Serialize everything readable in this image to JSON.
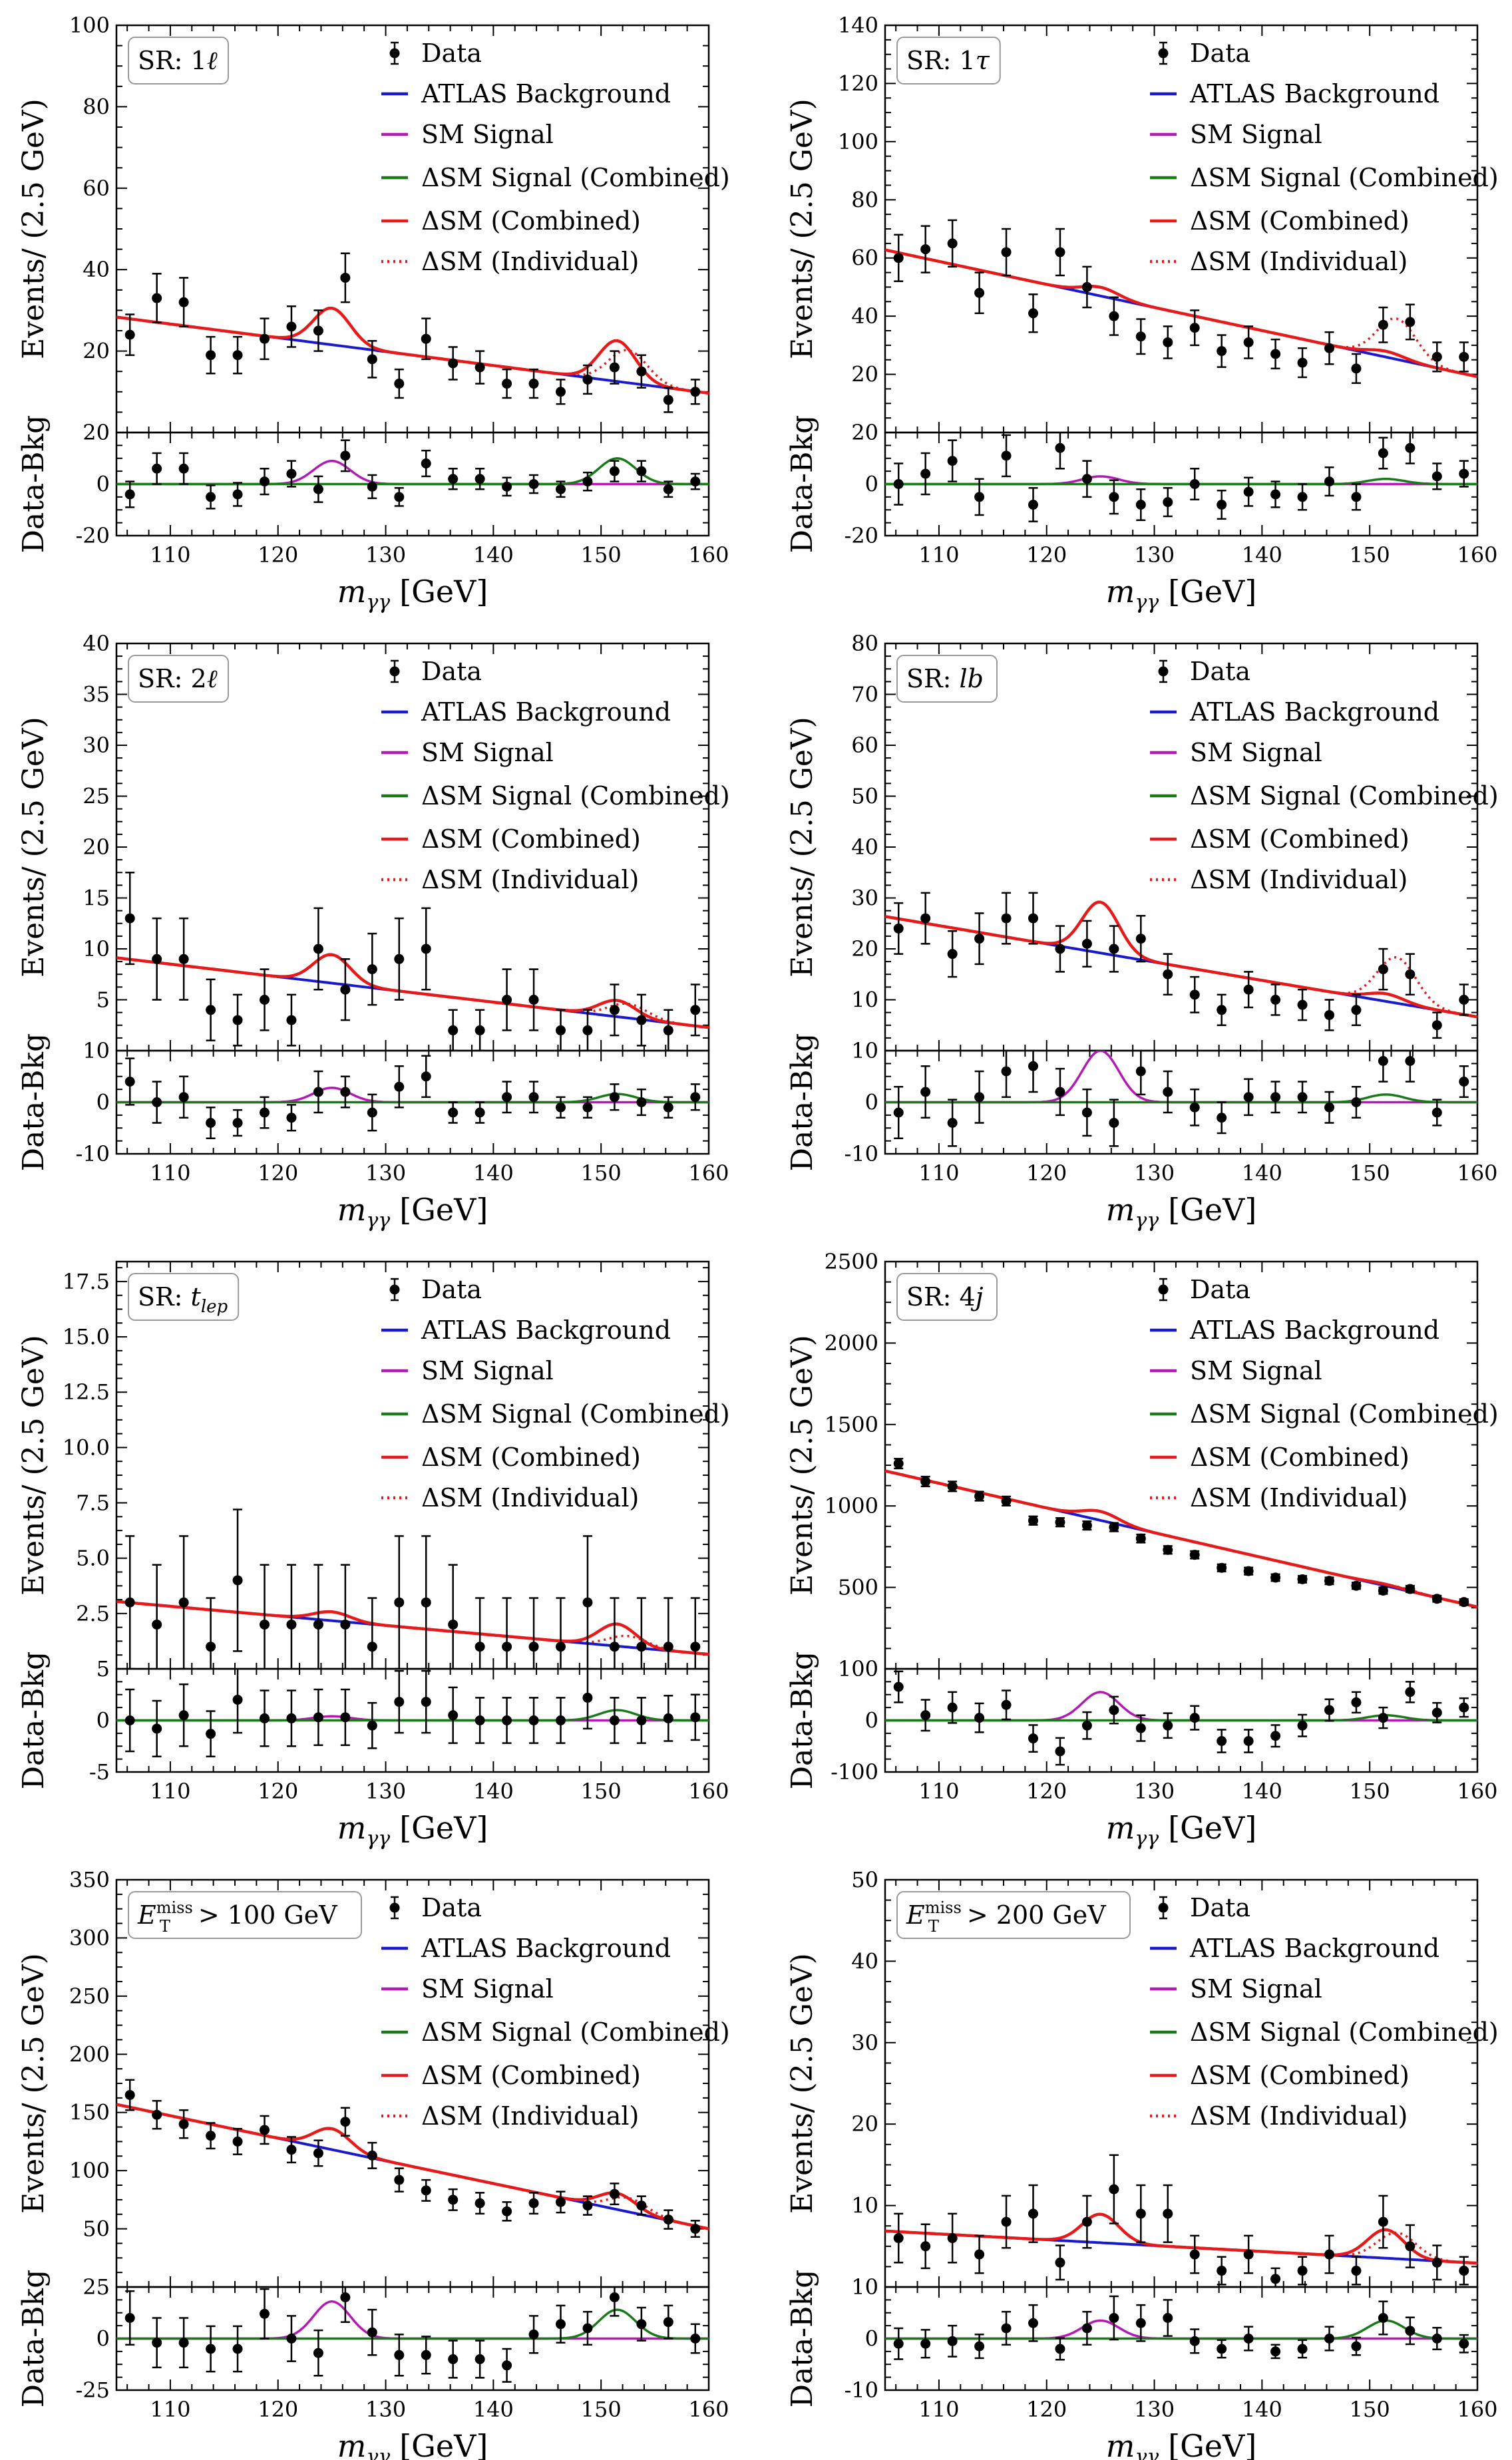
{
  "figure": {
    "xlabel_var": "m",
    "xlabel_sub": "γγ",
    "xlabel_unit": "[GeV]",
    "ylabel_top": "Events/ (2.5 GeV)",
    "ylabel_bottom": "Data-Bkg",
    "legend": [
      {
        "key": "data",
        "label": "Data",
        "color": "#000000",
        "style": "errorbar"
      },
      {
        "key": "bkg",
        "label": "ATLAS Background",
        "color": "#1a1acc",
        "style": "solid"
      },
      {
        "key": "sm",
        "label": "SM Signal",
        "color": "#b31ab3",
        "style": "solid"
      },
      {
        "key": "dsm_sig",
        "label": "ΔSM Signal (Combined)",
        "color": "#1a7a1a",
        "style": "solid"
      },
      {
        "key": "dsm_comb",
        "label": "ΔSM (Combined)",
        "color": "#e61a1a",
        "style": "solid"
      },
      {
        "key": "dsm_ind",
        "label": "ΔSM (Individual)",
        "color": "#e61a1a",
        "style": "dotted"
      }
    ],
    "x_ticks": [
      110,
      120,
      130,
      140,
      150,
      160
    ],
    "x_bins": [
      106.25,
      108.75,
      111.25,
      113.75,
      116.25,
      118.75,
      121.25,
      123.75,
      126.25,
      128.75,
      131.25,
      133.75,
      136.25,
      138.75,
      141.25,
      143.75,
      146.25,
      148.75,
      151.25,
      153.75,
      156.25,
      158.75
    ]
  },
  "chart_data": [
    {
      "type": "scatter",
      "title": "SR: 1ℓ",
      "xlim": [
        105,
        160
      ],
      "ylim": [
        0,
        100
      ],
      "y_ticks": [
        20,
        40,
        60,
        80,
        100
      ],
      "res_ylim": [
        -20,
        20
      ],
      "res_ticks": [
        -20,
        0,
        20
      ],
      "background": {
        "y_start": 28,
        "y_end": 10
      },
      "sm_peak": {
        "center": 125,
        "height": 9,
        "width": 1.7
      },
      "dsm_peak": {
        "center": 151.5,
        "height": 10,
        "width": 1.7
      },
      "ind_peak": {
        "center": 152.5,
        "height": 8,
        "width": 1.8
      },
      "data": [
        24,
        33,
        32,
        19,
        19,
        23,
        26,
        25,
        38,
        18,
        12,
        23,
        17,
        16,
        12,
        12,
        10,
        13,
        16,
        15,
        8,
        10
      ],
      "errors": [
        5,
        6,
        6,
        4.5,
        4.5,
        5,
        5,
        5,
        6,
        4.5,
        3.5,
        5,
        4,
        4,
        3.5,
        3.5,
        3,
        3.5,
        4,
        4,
        3,
        3
      ],
      "residuals": [
        -4,
        6,
        6,
        -5,
        -4,
        1,
        4,
        -2,
        11,
        -1,
        -5,
        8,
        2,
        2,
        -1,
        0,
        -2,
        1,
        5,
        5,
        -2,
        1
      ]
    },
    {
      "type": "scatter",
      "title": "SR: 1τ",
      "xlim": [
        105,
        160
      ],
      "ylim": [
        0,
        140
      ],
      "y_ticks": [
        20,
        40,
        60,
        80,
        100,
        120,
        140
      ],
      "res_ylim": [
        -20,
        20
      ],
      "res_ticks": [
        -20,
        0,
        20
      ],
      "background": {
        "y_start": 62,
        "y_end": 20
      },
      "sm_peak": {
        "center": 125,
        "height": 3,
        "width": 1.7
      },
      "dsm_peak": {
        "center": 151.5,
        "height": 2,
        "width": 1.7
      },
      "ind_peak": {
        "center": 152.5,
        "height": 14,
        "width": 1.8
      },
      "data": [
        60,
        63,
        65,
        48,
        62,
        41,
        62,
        50,
        40,
        33,
        31,
        36,
        28,
        31,
        27,
        24,
        29,
        22,
        37,
        38,
        26,
        26
      ],
      "errors": [
        8,
        8,
        8,
        7,
        8,
        6.5,
        8,
        7,
        6.5,
        6,
        5.5,
        6,
        5.5,
        5.5,
        5,
        5,
        5.5,
        5,
        6,
        6,
        5,
        5
      ],
      "residuals": [
        0,
        4,
        9,
        -5,
        11,
        -8,
        14,
        2,
        -5,
        -8,
        -7,
        0,
        -8,
        -3,
        -4,
        -5,
        1,
        -5,
        12,
        14,
        3,
        4
      ]
    },
    {
      "type": "scatter",
      "title": "SR: 2ℓ",
      "xlim": [
        105,
        160
      ],
      "ylim": [
        0,
        40
      ],
      "y_ticks": [
        5,
        10,
        15,
        20,
        25,
        30,
        35,
        40
      ],
      "res_ylim": [
        -10,
        10
      ],
      "res_ticks": [
        -10,
        0,
        10
      ],
      "background": {
        "y_start": 9,
        "y_end": 2.4
      },
      "sm_peak": {
        "center": 125,
        "height": 2.8,
        "width": 1.7
      },
      "dsm_peak": {
        "center": 151.5,
        "height": 1.6,
        "width": 1.7
      },
      "ind_peak": {
        "center": 152.5,
        "height": 1.4,
        "width": 1.8
      },
      "data": [
        13,
        9,
        9,
        4,
        3,
        5,
        3,
        10,
        6,
        8,
        9,
        10,
        2,
        2,
        5,
        5,
        2,
        2,
        4,
        3,
        2,
        4
      ],
      "errors": [
        4.5,
        4,
        4,
        3,
        2.5,
        3,
        2.5,
        4,
        3,
        3.5,
        4,
        4,
        2,
        2,
        3,
        3,
        2,
        2,
        2.5,
        2.5,
        2,
        2.5
      ],
      "residuals": [
        4,
        0,
        1,
        -4,
        -4,
        -2,
        -3,
        2,
        2,
        -2,
        3,
        5,
        -2,
        -2,
        1,
        1,
        -1,
        -1,
        1,
        0,
        -1,
        1
      ]
    },
    {
      "type": "scatter",
      "title": "SR: lb",
      "xlim": [
        105,
        160
      ],
      "ylim": [
        0,
        80
      ],
      "y_ticks": [
        10,
        20,
        30,
        40,
        50,
        60,
        70,
        80
      ],
      "res_ylim": [
        -10,
        10
      ],
      "res_ticks": [
        -10,
        0,
        10
      ],
      "background": {
        "y_start": 26,
        "y_end": 7
      },
      "sm_peak": {
        "center": 125,
        "height": 10,
        "width": 1.7
      },
      "dsm_peak": {
        "center": 151.5,
        "height": 1.5,
        "width": 1.7
      },
      "ind_peak": {
        "center": 152.5,
        "height": 9,
        "width": 1.8
      },
      "data": [
        24,
        26,
        19,
        22,
        26,
        26,
        20,
        21,
        20,
        22,
        15,
        11,
        8,
        12,
        10,
        9,
        7,
        8,
        16,
        15,
        5,
        10
      ],
      "errors": [
        5,
        5,
        4.5,
        5,
        5,
        5,
        4.5,
        4.5,
        4.5,
        4.5,
        4,
        3.5,
        3,
        3.5,
        3,
        3,
        3,
        3,
        4,
        4,
        2.5,
        3
      ],
      "residuals": [
        -2,
        2,
        -4,
        1,
        6,
        7,
        2,
        -2,
        -4,
        6,
        2,
        -1,
        -3,
        1,
        1,
        1,
        -1,
        0,
        8,
        8,
        -2,
        4
      ]
    },
    {
      "type": "scatter",
      "title": "SR: t_lep",
      "xlim": [
        105,
        160
      ],
      "ylim": [
        0,
        18.4
      ],
      "y_ticks": [
        2.5,
        5.0,
        7.5,
        10.0,
        12.5,
        15.0,
        17.5
      ],
      "res_ylim": [
        -5,
        5
      ],
      "res_ticks": [
        -5,
        0,
        5
      ],
      "background": {
        "y_start": 3,
        "y_end": 0.7
      },
      "sm_peak": {
        "center": 125,
        "height": 0.4,
        "width": 1.7
      },
      "dsm_peak": {
        "center": 151.5,
        "height": 1.0,
        "width": 1.7
      },
      "ind_peak": {
        "center": 152.5,
        "height": 0.5,
        "width": 1.8
      },
      "data": [
        3,
        2,
        3,
        1,
        4,
        2,
        2,
        2,
        2,
        1,
        3,
        3,
        2,
        1,
        1,
        1,
        1,
        3,
        1,
        1,
        1,
        1
      ],
      "errors": [
        3,
        2.7,
        3,
        2.2,
        3.2,
        2.7,
        2.7,
        2.7,
        2.7,
        2.2,
        3,
        3,
        2.7,
        2.2,
        2.2,
        2.2,
        2.2,
        3,
        2.2,
        2.2,
        2.2,
        2.2
      ],
      "residuals": [
        0,
        -0.8,
        0.5,
        -1.3,
        2,
        0.2,
        0.2,
        0.3,
        0.3,
        -0.5,
        1.8,
        1.8,
        0.5,
        0,
        0,
        0,
        0,
        2.2,
        0,
        0,
        0.2,
        0.3
      ]
    },
    {
      "type": "scatter",
      "title": "SR: 4j",
      "xlim": [
        105,
        160
      ],
      "ylim": [
        0,
        2500
      ],
      "y_ticks": [
        500,
        1000,
        1500,
        2000,
        2500
      ],
      "res_ylim": [
        -100,
        100
      ],
      "res_ticks": [
        -100,
        0,
        100
      ],
      "background": {
        "y_start": 1200,
        "y_end": 395
      },
      "sm_peak": {
        "center": 125,
        "height": 55,
        "width": 1.7
      },
      "dsm_peak": {
        "center": 151.5,
        "height": 10,
        "width": 1.7
      },
      "ind_peak": {
        "center": 152.5,
        "height": 12,
        "width": 1.8
      },
      "data": [
        1260,
        1150,
        1120,
        1060,
        1030,
        910,
        900,
        880,
        870,
        800,
        730,
        700,
        620,
        600,
        560,
        550,
        540,
        510,
        480,
        490,
        430,
        410
      ],
      "errors": [
        30,
        30,
        30,
        28,
        28,
        26,
        26,
        26,
        26,
        25,
        24,
        23,
        22,
        22,
        21,
        21,
        21,
        20,
        20,
        20,
        19,
        18
      ],
      "residuals": [
        65,
        10,
        25,
        5,
        30,
        -35,
        -60,
        -10,
        20,
        -15,
        -10,
        5,
        -40,
        -40,
        -30,
        -10,
        20,
        35,
        5,
        55,
        15,
        25
      ]
    },
    {
      "type": "scatter",
      "title": "E_T^miss > 100 GeV",
      "xlim": [
        105,
        160
      ],
      "ylim": [
        0,
        350
      ],
      "y_ticks": [
        50,
        100,
        150,
        200,
        250,
        300,
        350
      ],
      "res_ylim": [
        -25,
        25
      ],
      "res_ticks": [
        -25,
        0,
        25
      ],
      "background": {
        "y_start": 155,
        "y_end": 52
      },
      "sm_peak": {
        "center": 125,
        "height": 18,
        "width": 1.7
      },
      "dsm_peak": {
        "center": 151.5,
        "height": 14,
        "width": 1.7
      },
      "ind_peak": {
        "center": 152.5,
        "height": 12,
        "width": 1.8
      },
      "data": [
        165,
        148,
        140,
        130,
        125,
        135,
        118,
        115,
        142,
        113,
        92,
        83,
        75,
        72,
        65,
        72,
        73,
        70,
        80,
        70,
        58,
        50
      ],
      "errors": [
        13,
        12,
        12,
        11,
        11,
        12,
        11,
        11,
        12,
        11,
        10,
        9,
        9,
        9,
        8,
        9,
        9,
        8,
        9,
        8,
        8,
        7
      ],
      "residuals": [
        10,
        -2,
        -2,
        -5,
        -5,
        12,
        0,
        -7,
        20,
        3,
        -8,
        -8,
        -10,
        -10,
        -13,
        2,
        7,
        5,
        20,
        7,
        8,
        0
      ]
    },
    {
      "type": "scatter",
      "title": "E_T^miss > 200 GeV",
      "xlim": [
        105,
        160
      ],
      "ylim": [
        0,
        50
      ],
      "y_ticks": [
        10,
        20,
        30,
        40,
        50
      ],
      "res_ylim": [
        -10,
        10
      ],
      "res_ticks": [
        -10,
        0,
        10
      ],
      "background": {
        "y_start": 6.8,
        "y_end": 3
      },
      "sm_peak": {
        "center": 125,
        "height": 3.5,
        "width": 1.7
      },
      "dsm_peak": {
        "center": 151.5,
        "height": 3.5,
        "width": 1.7
      },
      "ind_peak": {
        "center": 152.5,
        "height": 3.2,
        "width": 1.8
      },
      "data": [
        6,
        5,
        6,
        4,
        8,
        9,
        3,
        8,
        12,
        9,
        9,
        4,
        2,
        4,
        1,
        2,
        4,
        2,
        8,
        5,
        3,
        2
      ],
      "errors": [
        3,
        2.7,
        3,
        2.3,
        3.2,
        3.5,
        2.1,
        3.2,
        4.2,
        3.5,
        3.5,
        2.3,
        1.7,
        2.3,
        1.3,
        1.7,
        2.3,
        1.7,
        3.2,
        2.6,
        2.1,
        1.7
      ],
      "residuals": [
        -1,
        -1,
        -0.5,
        -1.5,
        2,
        3,
        -2,
        2,
        4,
        3,
        4,
        -0.5,
        -2,
        0,
        -2.5,
        -2,
        0,
        -1.5,
        4,
        1.5,
        0,
        -1
      ]
    }
  ]
}
